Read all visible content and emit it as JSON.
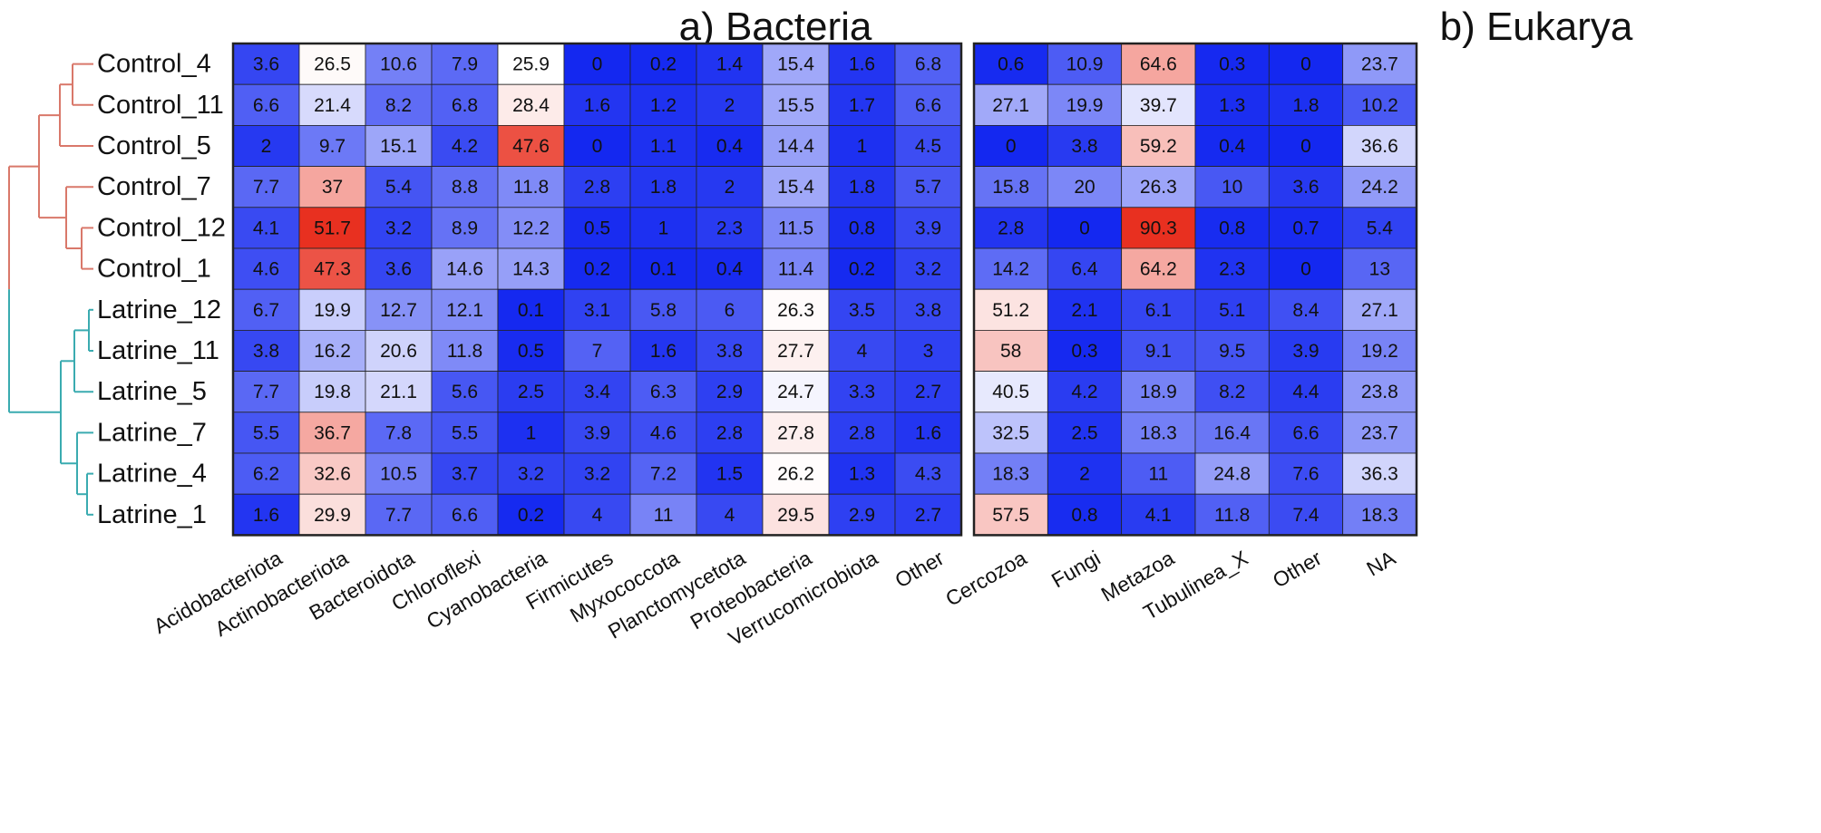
{
  "chart_data": [
    {
      "type": "heatmap",
      "title": "a) Bacteria",
      "rows": [
        "Control_4",
        "Control_11",
        "Control_5",
        "Control_7",
        "Control_12",
        "Control_1",
        "Latrine_12",
        "Latrine_11",
        "Latrine_5",
        "Latrine_7",
        "Latrine_4",
        "Latrine_1"
      ],
      "columns": [
        "Acidobacteriota",
        "Actinobacteriota",
        "Bacteroidota",
        "Chloroflexi",
        "Cyanobacteria",
        "Firmicutes",
        "Myxococcota",
        "Planctomycetota",
        "Proteobacteria",
        "Verrucomicrobiota",
        "Other"
      ],
      "values": [
        [
          3.6,
          26.5,
          10.6,
          7.9,
          25.9,
          0,
          0.2,
          1.4,
          15.4,
          1.6,
          6.8
        ],
        [
          6.6,
          21.4,
          8.2,
          6.8,
          28.4,
          1.6,
          1.2,
          2,
          15.5,
          1.7,
          6.6
        ],
        [
          2,
          9.7,
          15.1,
          4.2,
          47.6,
          0,
          1.1,
          0.4,
          14.4,
          1,
          4.5
        ],
        [
          7.7,
          37,
          5.4,
          8.8,
          11.8,
          2.8,
          1.8,
          2,
          15.4,
          1.8,
          5.7
        ],
        [
          4.1,
          51.7,
          3.2,
          8.9,
          12.2,
          0.5,
          1,
          2.3,
          11.5,
          0.8,
          3.9
        ],
        [
          4.6,
          47.3,
          3.6,
          14.6,
          14.3,
          0.2,
          0.1,
          0.4,
          11.4,
          0.2,
          3.2
        ],
        [
          6.7,
          19.9,
          12.7,
          12.1,
          0.1,
          3.1,
          5.8,
          6,
          26.3,
          3.5,
          3.8
        ],
        [
          3.8,
          16.2,
          20.6,
          11.8,
          0.5,
          7,
          1.6,
          3.8,
          27.7,
          4,
          3
        ],
        [
          7.7,
          19.8,
          21.1,
          5.6,
          2.5,
          3.4,
          6.3,
          2.9,
          24.7,
          3.3,
          2.7
        ],
        [
          5.5,
          36.7,
          7.8,
          5.5,
          1,
          3.9,
          4.6,
          2.8,
          27.8,
          2.8,
          1.6
        ],
        [
          6.2,
          32.6,
          10.5,
          3.7,
          3.2,
          3.2,
          7.2,
          1.5,
          26.2,
          1.3,
          4.3
        ],
        [
          1.6,
          29.9,
          7.7,
          6.6,
          0.2,
          4,
          11,
          4,
          29.5,
          2.9,
          2.7
        ]
      ],
      "colormap": {
        "low": "#1428f0",
        "mid": "#ffffff",
        "high": "#e83020"
      }
    },
    {
      "type": "heatmap",
      "title": "b) Eukarya",
      "rows": [
        "Control_4",
        "Control_11",
        "Control_5",
        "Control_7",
        "Control_12",
        "Control_1",
        "Latrine_12",
        "Latrine_11",
        "Latrine_5",
        "Latrine_7",
        "Latrine_4",
        "Latrine_1"
      ],
      "columns": [
        "Cercozoa",
        "Fungi",
        "Metazoa",
        "Tubulinea_X",
        "Other",
        "NA"
      ],
      "values": [
        [
          0.6,
          10.9,
          64.6,
          0.3,
          0,
          23.7
        ],
        [
          27.1,
          19.9,
          39.7,
          1.3,
          1.8,
          10.2
        ],
        [
          0,
          3.8,
          59.2,
          0.4,
          0,
          36.6
        ],
        [
          15.8,
          20,
          26.3,
          10,
          3.6,
          24.2
        ],
        [
          2.8,
          0,
          90.3,
          0.8,
          0.7,
          5.4
        ],
        [
          14.2,
          6.4,
          64.2,
          2.3,
          0,
          13
        ],
        [
          51.2,
          2.1,
          6.1,
          5.1,
          8.4,
          27.1
        ],
        [
          58,
          0.3,
          9.1,
          9.5,
          3.9,
          19.2
        ],
        [
          40.5,
          4.2,
          18.9,
          8.2,
          4.4,
          23.8
        ],
        [
          32.5,
          2.5,
          18.3,
          16.4,
          6.6,
          23.7
        ],
        [
          18.3,
          2,
          11,
          24.8,
          7.6,
          36.3
        ],
        [
          57.5,
          0.8,
          4.1,
          11.8,
          7.4,
          18.3
        ]
      ],
      "colormap": {
        "low": "#1428f0",
        "mid": "#ffffff",
        "high": "#e83020"
      }
    }
  ],
  "dendrogram": {
    "control_color": "#d9786a",
    "latrine_color": "#3aabb0"
  }
}
